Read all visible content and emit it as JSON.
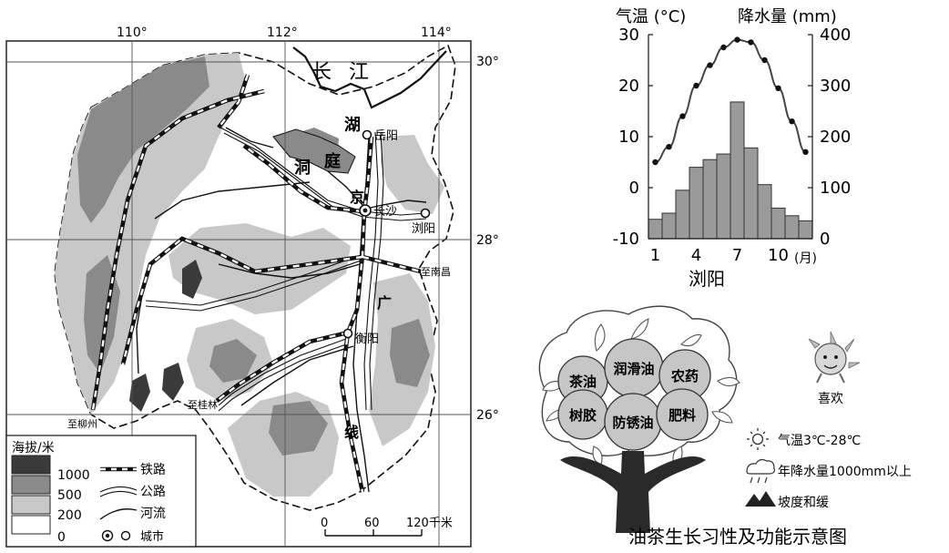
{
  "map": {
    "longitudes": [
      "110°",
      "112°",
      "114°"
    ],
    "latitudes": [
      "30°",
      "28°",
      "26°"
    ],
    "features": {
      "river_changjiang": "长 江",
      "lake_dongting": [
        "湖",
        "庭",
        "洞"
      ],
      "rail_jing": "京",
      "rail_guang": "广",
      "rail_xian": "线"
    },
    "cities": [
      "岳阳",
      "长沙",
      "浏阳",
      "衡阳"
    ],
    "destinations": [
      "至南昌",
      "至桂林",
      "至柳州"
    ],
    "scale": {
      "ticks": [
        "0",
        "60",
        "120千米"
      ]
    },
    "legend": {
      "title": "海拔/米",
      "elevation": [
        "1000",
        "500",
        "200",
        "0"
      ],
      "symbols": [
        "铁路",
        "公路",
        "河流",
        "城市"
      ],
      "elevation_colors": [
        "#3a3a3a",
        "#8a8a8a",
        "#c8c8c8",
        "#ffffff"
      ]
    }
  },
  "chart_data": {
    "type": "bar+line",
    "title": "浏阳",
    "y_left_label": "气温 (°C)",
    "y_right_label": "降水量 (mm)",
    "x_unit": "(月)",
    "months": [
      1,
      2,
      3,
      4,
      5,
      6,
      7,
      8,
      9,
      10,
      11,
      12
    ],
    "x_tick_labels": [
      "1",
      "4",
      "7",
      "10"
    ],
    "left_ticks": [
      "30",
      "20",
      "10",
      "0",
      "-10"
    ],
    "right_ticks": [
      "400",
      "300",
      "200",
      "100",
      "0"
    ],
    "temperature_c": [
      5,
      8,
      14,
      20,
      24,
      27.5,
      29,
      28.5,
      25,
      19.5,
      13,
      7
    ],
    "precipitation_mm": [
      38,
      50,
      95,
      140,
      155,
      166,
      268,
      178,
      106,
      60,
      45,
      35
    ],
    "ylim_temp": [
      -10,
      30
    ],
    "ylim_precip": [
      0,
      400
    ]
  },
  "oil_tea": {
    "title": "油茶生长习性及功能示意图",
    "uses": [
      "茶油",
      "润滑油",
      "农药",
      "树胶",
      "防锈油",
      "肥料"
    ],
    "likes_label": "喜欢",
    "conditions": [
      "气温3℃-28℃",
      "年降水量1000mm以上",
      "坡度和缓"
    ],
    "condition_icons": [
      "sun-icon",
      "rain-cloud-icon",
      "mountain-icon"
    ]
  }
}
